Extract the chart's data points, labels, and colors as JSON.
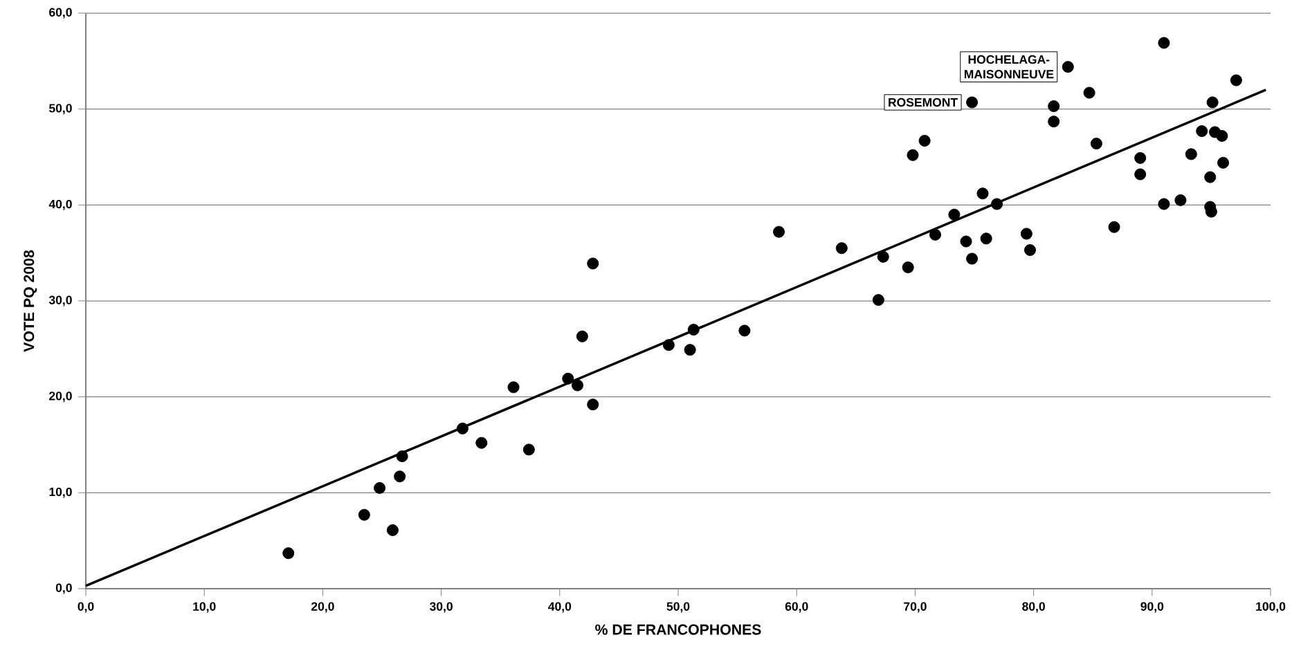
{
  "chart_data": {
    "type": "scatter",
    "xlabel": "% DE FRANCOPHONES",
    "ylabel": "VOTE PQ 2008",
    "xlim": [
      0,
      100
    ],
    "ylim": [
      0,
      60
    ],
    "xticks": [
      {
        "value": 0,
        "label": "0,0"
      },
      {
        "value": 10,
        "label": "10,0"
      },
      {
        "value": 20,
        "label": "20,0"
      },
      {
        "value": 30,
        "label": "30,0"
      },
      {
        "value": 40,
        "label": "40,0"
      },
      {
        "value": 50,
        "label": "50,0"
      },
      {
        "value": 60,
        "label": "60,0"
      },
      {
        "value": 70,
        "label": "70,0"
      },
      {
        "value": 80,
        "label": "80,0"
      },
      {
        "value": 90,
        "label": "90,0"
      },
      {
        "value": 100,
        "label": "100,0"
      }
    ],
    "yticks": [
      {
        "value": 0,
        "label": "0,0"
      },
      {
        "value": 10,
        "label": "10,0"
      },
      {
        "value": 20,
        "label": "20,0"
      },
      {
        "value": 30,
        "label": "30,0"
      },
      {
        "value": 40,
        "label": "40,0"
      },
      {
        "value": 50,
        "label": "50,0"
      },
      {
        "value": 60,
        "label": "60,0"
      }
    ],
    "grid": "y",
    "series": [
      {
        "color": "#000000",
        "marker": "circle",
        "x": [
          17.1,
          23.5,
          24.8,
          25.9,
          26.5,
          26.7,
          31.8,
          33.4,
          36.1,
          37.4,
          40.7,
          41.5,
          41.9,
          42.8,
          42.8,
          49.2,
          51.0,
          51.3,
          55.6,
          58.5,
          63.8,
          66.9,
          67.3,
          69.4,
          69.8,
          70.8,
          71.7,
          73.3,
          74.8,
          74.3,
          74.8,
          75.7,
          76.0,
          76.9,
          79.4,
          79.7,
          81.7,
          81.7,
          82.9,
          84.7,
          85.3,
          86.8,
          89.0,
          89.0,
          91.0,
          91.0,
          92.4,
          93.3,
          94.2,
          94.9,
          94.9,
          95.0,
          95.1,
          95.3,
          95.9,
          96.0,
          97.1
        ],
        "values": [
          3.7,
          7.7,
          10.5,
          6.1,
          11.7,
          13.8,
          16.7,
          15.2,
          21.0,
          14.5,
          21.9,
          21.2,
          26.3,
          33.9,
          19.2,
          25.4,
          24.9,
          27.0,
          26.9,
          37.2,
          35.5,
          30.1,
          34.6,
          33.5,
          45.2,
          46.7,
          36.9,
          39.0,
          34.4,
          36.2,
          50.7,
          41.2,
          36.5,
          40.1,
          37.0,
          35.3,
          50.3,
          48.7,
          54.4,
          51.7,
          46.4,
          37.7,
          44.9,
          43.2,
          40.1,
          56.9,
          40.5,
          45.3,
          47.7,
          42.9,
          39.8,
          39.3,
          50.7,
          47.6,
          47.2,
          44.4,
          53.0
        ]
      },
      {
        "type": "line",
        "color": "#000000",
        "marker": "none",
        "line_style": "solid",
        "x": [
          0,
          99.6
        ],
        "values": [
          0.3,
          52.0
        ]
      }
    ],
    "annotations": [
      {
        "text": "ROSEMONT",
        "x": 74.8,
        "y": 50.7
      },
      {
        "text": "HOCHELAGA-MAISONNEUVE",
        "x": 82.9,
        "y": 54.4
      }
    ]
  }
}
